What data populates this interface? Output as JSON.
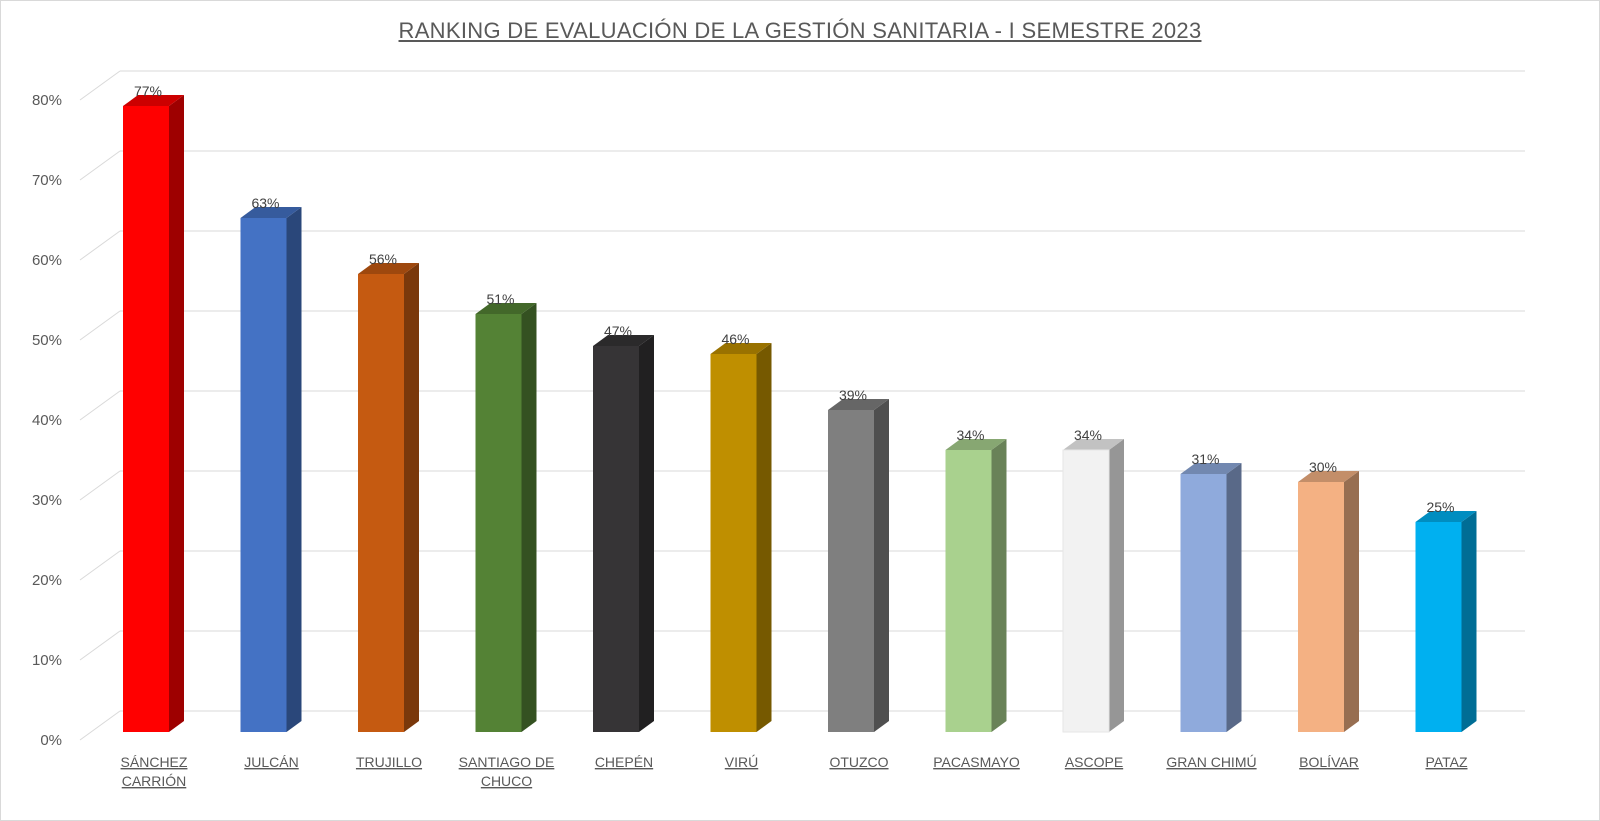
{
  "chart_data": {
    "type": "bar",
    "title": "RANKING DE EVALUACIÓN DE LA GESTIÓN SANITARIA - I SEMESTRE 2023",
    "xlabel": "",
    "ylabel": "",
    "ylim": [
      0,
      80
    ],
    "yticks": [
      "0%",
      "10%",
      "20%",
      "30%",
      "40%",
      "50%",
      "60%",
      "70%",
      "80%"
    ],
    "grid": true,
    "legend": "none",
    "categories": [
      [
        "SÁNCHEZ",
        "CARRIÓN"
      ],
      [
        "JULCÁN"
      ],
      [
        "TRUJILLO"
      ],
      [
        "SANTIAGO DE",
        "CHUCO"
      ],
      [
        "CHEPÉN"
      ],
      [
        "VIRÚ"
      ],
      [
        "OTUZCO"
      ],
      [
        "PACASMAYO"
      ],
      [
        "ASCOPE"
      ],
      [
        "GRAN CHIMÚ"
      ],
      [
        "BOLÍVAR"
      ],
      [
        "PATAZ"
      ]
    ],
    "values": [
      77,
      63,
      56,
      51,
      47,
      46,
      39,
      34,
      34,
      31,
      30,
      25
    ],
    "data_labels": [
      "77%",
      "63%",
      "56%",
      "51%",
      "47%",
      "46%",
      "39%",
      "34%",
      "34%",
      "31%",
      "30%",
      "25%"
    ],
    "colors": [
      "#ff0000",
      "#4472c4",
      "#c55a11",
      "#548235",
      "#363436",
      "#bf8f00",
      "#7f7f7f",
      "#a9d18e",
      "#f2f2f2",
      "#8faadc",
      "#f4b183",
      "#00b0f0"
    ]
  }
}
